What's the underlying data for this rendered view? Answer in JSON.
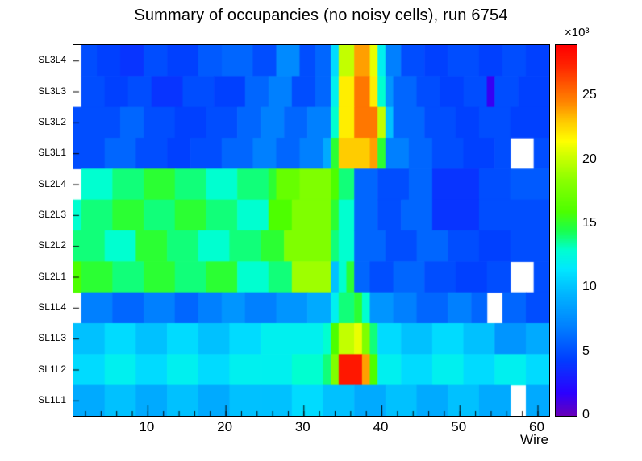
{
  "chart_data": {
    "type": "heatmap",
    "title": "Summary of occupancies (no noisy cells), run 6754",
    "xlabel": "Wire",
    "x_range": [
      0.5,
      61.5
    ],
    "x_ticks": [
      10,
      20,
      30,
      40,
      50,
      60
    ],
    "x_minor_tick_step": 2,
    "unit_label": "×10³",
    "value_unit": 1000,
    "grid": false,
    "colorbar": {
      "min": 0,
      "max": 29,
      "ticks": [
        0,
        5,
        10,
        15,
        20,
        25
      ],
      "position": "right"
    },
    "palette": [
      [
        0,
        "#6a00b8"
      ],
      [
        1.8,
        "#2c00ff"
      ],
      [
        4.5,
        "#0040ff"
      ],
      [
        7,
        "#0080ff"
      ],
      [
        9.5,
        "#00b4ff"
      ],
      [
        11.5,
        "#00e8ff"
      ],
      [
        13,
        "#00ffd0"
      ],
      [
        14.5,
        "#1aff4d"
      ],
      [
        16,
        "#4dff00"
      ],
      [
        18.5,
        "#8cff00"
      ],
      [
        20.5,
        "#d4ff00"
      ],
      [
        21.5,
        "#ffff00"
      ],
      [
        23,
        "#ffcc00"
      ],
      [
        24.5,
        "#ff8800"
      ],
      [
        26,
        "#ff5500"
      ],
      [
        27.5,
        "#ff2200"
      ],
      [
        29,
        "#ff0000"
      ]
    ],
    "row_labels_top_to_bottom": [
      "SL3L4",
      "SL3L3",
      "SL3L2",
      "SL3L1",
      "SL2L4",
      "SL2L3",
      "SL2L2",
      "SL2L1",
      "SL1L4",
      "SL1L3",
      "SL1L2",
      "SL1L1"
    ],
    "rows": [
      {
        "label": "SL3L4",
        "segments": [
          [
            1,
            1,
            null
          ],
          [
            2,
            3,
            5
          ],
          [
            4,
            6,
            4.5
          ],
          [
            7,
            9,
            4
          ],
          [
            10,
            12,
            5
          ],
          [
            13,
            16,
            4.5
          ],
          [
            17,
            19,
            5.5
          ],
          [
            20,
            23,
            6
          ],
          [
            24,
            26,
            5
          ],
          [
            27,
            29,
            7.5
          ],
          [
            30,
            31,
            5
          ],
          [
            32,
            33,
            6
          ],
          [
            34,
            34,
            11
          ],
          [
            35,
            36,
            20
          ],
          [
            37,
            38,
            24
          ],
          [
            39,
            39,
            21
          ],
          [
            40,
            40,
            12
          ],
          [
            41,
            42,
            7
          ],
          [
            43,
            45,
            5
          ],
          [
            46,
            48,
            4.5
          ],
          [
            49,
            52,
            5
          ],
          [
            53,
            55,
            4.5
          ],
          [
            56,
            58,
            5
          ],
          [
            59,
            61,
            4.5
          ]
        ]
      },
      {
        "label": "SL3L3",
        "segments": [
          [
            1,
            1,
            null
          ],
          [
            2,
            4,
            5
          ],
          [
            5,
            7,
            4.5
          ],
          [
            8,
            10,
            5
          ],
          [
            11,
            14,
            4
          ],
          [
            15,
            18,
            5
          ],
          [
            19,
            22,
            4.5
          ],
          [
            23,
            25,
            6
          ],
          [
            26,
            28,
            7
          ],
          [
            29,
            31,
            5
          ],
          [
            32,
            33,
            6
          ],
          [
            34,
            34,
            12
          ],
          [
            35,
            36,
            22
          ],
          [
            37,
            38,
            25
          ],
          [
            39,
            39,
            22
          ],
          [
            40,
            40,
            13
          ],
          [
            41,
            41,
            8
          ],
          [
            42,
            44,
            6
          ],
          [
            45,
            47,
            5
          ],
          [
            48,
            50,
            4.5
          ],
          [
            51,
            53,
            5
          ],
          [
            54,
            54,
            1.5
          ],
          [
            55,
            57,
            5
          ],
          [
            58,
            61,
            4.5
          ]
        ]
      },
      {
        "label": "SL3L2",
        "segments": [
          [
            1,
            6,
            5
          ],
          [
            7,
            9,
            6
          ],
          [
            10,
            13,
            5
          ],
          [
            14,
            17,
            4.5
          ],
          [
            18,
            21,
            5
          ],
          [
            22,
            24,
            6
          ],
          [
            25,
            27,
            7
          ],
          [
            28,
            30,
            6
          ],
          [
            31,
            33,
            7
          ],
          [
            34,
            34,
            13
          ],
          [
            35,
            36,
            22
          ],
          [
            37,
            39,
            25
          ],
          [
            40,
            40,
            20
          ],
          [
            41,
            41,
            10
          ],
          [
            42,
            45,
            6
          ],
          [
            46,
            49,
            5
          ],
          [
            50,
            52,
            4.5
          ],
          [
            53,
            56,
            5
          ],
          [
            57,
            61,
            4.5
          ]
        ]
      },
      {
        "label": "SL3L1",
        "segments": [
          [
            1,
            4,
            5
          ],
          [
            5,
            8,
            6
          ],
          [
            9,
            12,
            5
          ],
          [
            13,
            15,
            4.5
          ],
          [
            16,
            19,
            5
          ],
          [
            20,
            23,
            6
          ],
          [
            24,
            26,
            7
          ],
          [
            27,
            29,
            6
          ],
          [
            30,
            32,
            7
          ],
          [
            33,
            33,
            9
          ],
          [
            34,
            34,
            15
          ],
          [
            35,
            38,
            23
          ],
          [
            39,
            39,
            24
          ],
          [
            40,
            40,
            15
          ],
          [
            41,
            43,
            7
          ],
          [
            44,
            46,
            6
          ],
          [
            47,
            50,
            5
          ],
          [
            51,
            54,
            4.5
          ],
          [
            55,
            56,
            5
          ],
          [
            57,
            59,
            null
          ],
          [
            60,
            61,
            5
          ]
        ]
      },
      {
        "label": "SL2L4",
        "segments": [
          [
            1,
            1,
            null
          ],
          [
            2,
            5,
            13
          ],
          [
            6,
            9,
            14
          ],
          [
            10,
            13,
            15
          ],
          [
            14,
            17,
            14
          ],
          [
            18,
            21,
            13
          ],
          [
            22,
            25,
            14
          ],
          [
            26,
            26,
            15
          ],
          [
            27,
            29,
            17
          ],
          [
            30,
            33,
            18
          ],
          [
            34,
            34,
            16
          ],
          [
            35,
            36,
            14
          ],
          [
            37,
            39,
            6
          ],
          [
            40,
            43,
            5
          ],
          [
            44,
            46,
            6
          ],
          [
            47,
            52,
            4
          ],
          [
            53,
            56,
            5
          ],
          [
            57,
            61,
            5.5
          ]
        ]
      },
      {
        "label": "SL2L3",
        "segments": [
          [
            1,
            1,
            13
          ],
          [
            2,
            5,
            14
          ],
          [
            6,
            9,
            15
          ],
          [
            10,
            13,
            14
          ],
          [
            14,
            17,
            15
          ],
          [
            18,
            21,
            14
          ],
          [
            22,
            25,
            13
          ],
          [
            26,
            28,
            16
          ],
          [
            29,
            33,
            18
          ],
          [
            34,
            34,
            15
          ],
          [
            35,
            36,
            13
          ],
          [
            37,
            39,
            6
          ],
          [
            40,
            42,
            5
          ],
          [
            43,
            46,
            6
          ],
          [
            47,
            52,
            4
          ],
          [
            53,
            61,
            5
          ]
        ]
      },
      {
        "label": "SL2L2",
        "segments": [
          [
            1,
            4,
            14
          ],
          [
            5,
            8,
            13
          ],
          [
            9,
            12,
            15
          ],
          [
            13,
            16,
            14
          ],
          [
            17,
            20,
            13
          ],
          [
            21,
            24,
            14
          ],
          [
            25,
            27,
            15
          ],
          [
            28,
            33,
            18
          ],
          [
            34,
            34,
            14
          ],
          [
            35,
            36,
            13
          ],
          [
            37,
            40,
            6
          ],
          [
            41,
            44,
            5
          ],
          [
            45,
            48,
            6
          ],
          [
            49,
            52,
            5
          ],
          [
            53,
            56,
            4.5
          ],
          [
            57,
            61,
            5
          ]
        ]
      },
      {
        "label": "SL2L1",
        "segments": [
          [
            1,
            1,
            16
          ],
          [
            2,
            5,
            15
          ],
          [
            6,
            9,
            14
          ],
          [
            10,
            13,
            15
          ],
          [
            14,
            17,
            14
          ],
          [
            18,
            21,
            15
          ],
          [
            22,
            25,
            13
          ],
          [
            26,
            28,
            14
          ],
          [
            29,
            33,
            19
          ],
          [
            34,
            34,
            10
          ],
          [
            35,
            35,
            13
          ],
          [
            36,
            36,
            15
          ],
          [
            37,
            38,
            6
          ],
          [
            39,
            41,
            5
          ],
          [
            42,
            45,
            6
          ],
          [
            46,
            49,
            5
          ],
          [
            50,
            53,
            4.5
          ],
          [
            54,
            56,
            5
          ],
          [
            57,
            59,
            null
          ],
          [
            60,
            61,
            5
          ]
        ]
      },
      {
        "label": "SL1L4",
        "segments": [
          [
            1,
            1,
            null
          ],
          [
            2,
            5,
            7
          ],
          [
            6,
            9,
            6
          ],
          [
            10,
            13,
            7
          ],
          [
            14,
            16,
            6
          ],
          [
            17,
            19,
            7
          ],
          [
            20,
            22,
            8
          ],
          [
            23,
            26,
            7
          ],
          [
            27,
            30,
            8
          ],
          [
            31,
            33,
            9
          ],
          [
            34,
            34,
            12
          ],
          [
            35,
            36,
            14
          ],
          [
            37,
            37,
            15
          ],
          [
            38,
            38,
            13
          ],
          [
            39,
            41,
            8
          ],
          [
            42,
            44,
            7
          ],
          [
            45,
            48,
            6
          ],
          [
            49,
            51,
            7
          ],
          [
            52,
            53,
            6
          ],
          [
            54,
            55,
            null
          ],
          [
            56,
            58,
            6
          ],
          [
            59,
            61,
            5
          ]
        ]
      },
      {
        "label": "SL1L3",
        "segments": [
          [
            1,
            4,
            10
          ],
          [
            5,
            8,
            11
          ],
          [
            9,
            12,
            10
          ],
          [
            13,
            16,
            11
          ],
          [
            17,
            20,
            10
          ],
          [
            21,
            24,
            11
          ],
          [
            25,
            28,
            12
          ],
          [
            29,
            32,
            12
          ],
          [
            33,
            33,
            13
          ],
          [
            34,
            34,
            16
          ],
          [
            35,
            36,
            20
          ],
          [
            37,
            37,
            21
          ],
          [
            38,
            38,
            18
          ],
          [
            39,
            39,
            14
          ],
          [
            40,
            42,
            11
          ],
          [
            43,
            46,
            10
          ],
          [
            47,
            50,
            11
          ],
          [
            51,
            54,
            10
          ],
          [
            55,
            58,
            8
          ],
          [
            59,
            61,
            9
          ]
        ]
      },
      {
        "label": "SL1L2",
        "segments": [
          [
            1,
            4,
            11
          ],
          [
            5,
            8,
            12
          ],
          [
            9,
            12,
            11
          ],
          [
            13,
            16,
            12
          ],
          [
            17,
            20,
            11
          ],
          [
            21,
            24,
            12
          ],
          [
            25,
            28,
            12
          ],
          [
            29,
            32,
            13
          ],
          [
            33,
            33,
            14
          ],
          [
            34,
            34,
            18
          ],
          [
            35,
            37,
            28
          ],
          [
            38,
            38,
            24
          ],
          [
            39,
            39,
            16
          ],
          [
            40,
            42,
            12
          ],
          [
            43,
            46,
            11
          ],
          [
            47,
            50,
            12
          ],
          [
            51,
            54,
            11
          ],
          [
            55,
            58,
            12
          ],
          [
            59,
            61,
            11
          ]
        ]
      },
      {
        "label": "SL1L1",
        "segments": [
          [
            1,
            4,
            9
          ],
          [
            5,
            8,
            10
          ],
          [
            9,
            12,
            9
          ],
          [
            13,
            16,
            10
          ],
          [
            17,
            20,
            9
          ],
          [
            21,
            24,
            10
          ],
          [
            25,
            28,
            10
          ],
          [
            29,
            32,
            11
          ],
          [
            33,
            36,
            10
          ],
          [
            37,
            40,
            9
          ],
          [
            41,
            44,
            10
          ],
          [
            45,
            48,
            9
          ],
          [
            49,
            52,
            10
          ],
          [
            53,
            56,
            9
          ],
          [
            57,
            58,
            null
          ],
          [
            59,
            61,
            9
          ]
        ]
      }
    ]
  }
}
